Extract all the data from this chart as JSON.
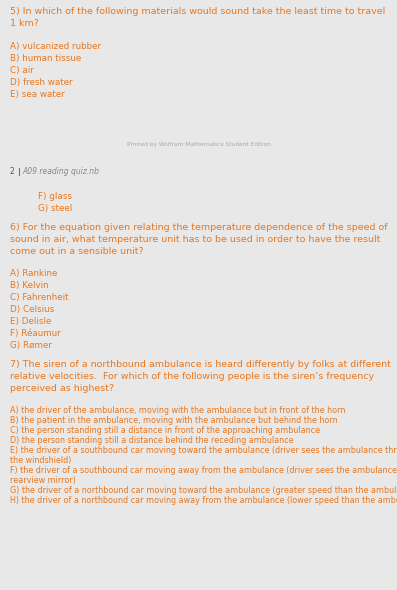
{
  "bg_color": "#ffffff",
  "orange": "#e8771e",
  "header_bg": "#c8c8c8",
  "page_bg": "#e8e8e8",
  "q5_title": "5) In which of the following materials would sound take the least time to travel\n1 km?",
  "q5_options": [
    "A) vulcanized rubber",
    "B) human tissue",
    "C) air",
    "D) fresh water",
    "E) sea water"
  ],
  "footer_text": "Printed by Wolfram Mathematica Student Edition",
  "page_header_num": "2",
  "page_header_file": "A09 reading quiz.nb",
  "q5_cont": [
    "F) glass",
    "G) steel"
  ],
  "q6_title": "6) For the equation given relating the temperature dependence of the speed of\nsound in air, what temperature unit has to be used in order to have the result\ncome out in a sensible unit?",
  "q6_options": [
    "A) Rankine",
    "B) Kelvin",
    "C) Fahrenheit",
    "D) Celsius",
    "E) Delisle",
    "F) Réaumur",
    "G) Rømer"
  ],
  "q7_title": "7) The siren of a northbound ambulance is heard differently by folks at different\nrelative velocities.  For which of the following people is the siren’s frequency\nperceived as highest?",
  "q7_options_line1": [
    "A) the driver of the ambulance, moving with the ambulance but in front of the horn",
    "B) the patient in the ambulance, moving with the ambulance but behind the horn",
    "C) the person standing still a distance in front of the approaching ambulance",
    "D) the person standing still a distance behind the receding ambulance",
    "E) the driver of a southbound car moving toward the ambulance (driver sees the ambulance through",
    "F) the driver of a southbound car moving away from the ambulance (driver sees the ambulance in the",
    "G) the driver of a northbound car moving toward the ambulance (greater speed than the ambulance)",
    "H) the driver of a northbound car moving away from the ambulance (lower speed than the ambulance)"
  ],
  "q7_options_line2": [
    "",
    "",
    "",
    "",
    "the windshield)",
    "rearview mirror)",
    "",
    ""
  ]
}
